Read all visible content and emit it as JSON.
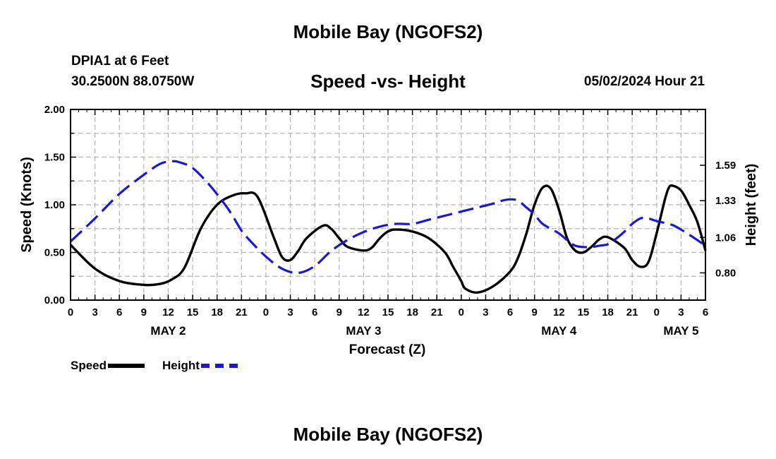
{
  "header": {
    "title": "Mobile Bay (NGOFS2)",
    "station": "DPIA1 at 6 Feet",
    "coords": "30.2500N  88.0750W",
    "subtitle": "Speed -vs- Height",
    "timestamp": "05/02/2024 Hour 21",
    "footer_title": "Mobile Bay (NGOFS2)"
  },
  "legend": {
    "speed_label": "Speed",
    "height_label": "Height"
  },
  "colors": {
    "speed": "#000000",
    "height": "#1a1acc",
    "grid": "#b4b4b4"
  },
  "chart_data": {
    "type": "line",
    "title": "Speed -vs- Height",
    "xlabel": "Forecast (Z)",
    "ylabel": "Speed (Knots)",
    "y2label": "Height (feet)",
    "xlim": [
      0,
      78
    ],
    "ylim": [
      0,
      2
    ],
    "y2lim": [
      0.6,
      2.0
    ],
    "grid": true,
    "yticks": [
      "0.00",
      "0.50",
      "1.00",
      "1.50",
      "2.00"
    ],
    "y2ticks": [
      0.8,
      1.06,
      1.33,
      1.59
    ],
    "xtick_labels": [
      "0",
      "3",
      "6",
      "9",
      "12",
      "15",
      "18",
      "21",
      "0",
      "3",
      "6",
      "9",
      "12",
      "15",
      "18",
      "21",
      "0",
      "3",
      "6",
      "9",
      "12",
      "15",
      "18",
      "21",
      "0",
      "3",
      "6"
    ],
    "days": [
      {
        "label": "MAY 2",
        "x": 12
      },
      {
        "label": "MAY 3",
        "x": 36
      },
      {
        "label": "MAY 4",
        "x": 60
      },
      {
        "label": "MAY 5",
        "x": 75
      }
    ],
    "series": [
      {
        "name": "Speed",
        "axis": "left",
        "x": [
          0,
          3,
          6,
          9,
          11,
          12.5,
          14,
          16,
          18,
          20,
          21.5,
          23,
          25,
          26,
          27,
          28,
          29,
          31,
          32,
          33,
          34,
          36,
          37,
          38,
          39,
          40,
          42,
          44,
          46,
          47,
          48,
          48.5,
          50,
          52,
          54,
          55,
          56,
          57,
          58,
          59,
          60,
          61,
          62,
          63,
          64,
          65,
          66,
          68,
          69,
          70,
          71,
          72,
          73,
          73.5,
          74,
          75,
          76,
          77,
          78
        ],
        "y": [
          0.58,
          0.33,
          0.2,
          0.16,
          0.17,
          0.22,
          0.34,
          0.75,
          1.0,
          1.1,
          1.12,
          1.08,
          0.65,
          0.45,
          0.42,
          0.52,
          0.65,
          0.78,
          0.75,
          0.65,
          0.56,
          0.52,
          0.55,
          0.65,
          0.72,
          0.74,
          0.72,
          0.65,
          0.5,
          0.35,
          0.2,
          0.12,
          0.08,
          0.15,
          0.3,
          0.45,
          0.7,
          1.0,
          1.18,
          1.17,
          0.95,
          0.65,
          0.52,
          0.5,
          0.56,
          0.64,
          0.66,
          0.55,
          0.42,
          0.35,
          0.4,
          0.7,
          1.05,
          1.18,
          1.2,
          1.15,
          1.0,
          0.82,
          0.52
        ]
      },
      {
        "name": "Height",
        "axis": "right",
        "x": [
          0,
          3,
          6,
          9,
          11,
          12.5,
          13.5,
          15,
          17,
          19,
          20,
          21,
          22,
          24,
          26,
          28,
          30,
          32,
          34,
          36,
          38,
          40,
          42,
          44,
          46,
          48,
          50,
          52,
          53,
          54,
          55,
          56,
          57,
          58,
          60,
          61,
          62,
          63,
          64,
          65,
          66,
          67,
          68,
          69,
          70,
          70.5,
          71,
          72,
          74,
          76,
          78
        ],
        "y": [
          1.03,
          1.2,
          1.38,
          1.52,
          1.6,
          1.62,
          1.61,
          1.57,
          1.45,
          1.3,
          1.21,
          1.11,
          1.04,
          0.92,
          0.83,
          0.8,
          0.85,
          0.96,
          1.04,
          1.1,
          1.14,
          1.16,
          1.16,
          1.19,
          1.22,
          1.25,
          1.28,
          1.31,
          1.33,
          1.34,
          1.33,
          1.28,
          1.23,
          1.16,
          1.09,
          1.04,
          1.0,
          0.99,
          0.99,
          1.0,
          1.01,
          1.05,
          1.1,
          1.16,
          1.2,
          1.2,
          1.2,
          1.18,
          1.15,
          1.08,
          1.0
        ]
      }
    ]
  }
}
